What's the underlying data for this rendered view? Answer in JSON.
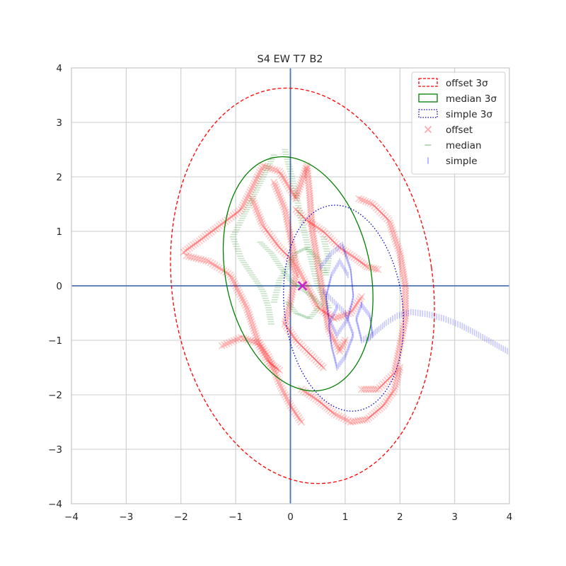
{
  "chart_data": {
    "type": "scatter",
    "title": "S4 EW T7 B2",
    "xlim": [
      -4,
      4
    ],
    "ylim": [
      -4,
      4
    ],
    "xticks": [
      -4,
      -3,
      -2,
      -1,
      0,
      1,
      2,
      3,
      4
    ],
    "yticks": [
      -4,
      -3,
      -2,
      -1,
      0,
      1,
      2,
      3,
      4
    ],
    "grid": true,
    "legend_position": "top-right",
    "axis_lines": {
      "x": 0,
      "y": 0,
      "color": "#4c72b0"
    },
    "ellipses": [
      {
        "name": "offset 3σ",
        "cx": 0.22,
        "cy": 0.0,
        "rx": 2.38,
        "ry": 3.65,
        "angle_deg": -8,
        "color": "#ff0000",
        "style": "dashed"
      },
      {
        "name": "median 3σ",
        "cx": 0.14,
        "cy": 0.22,
        "rx": 1.32,
        "ry": 2.18,
        "angle_deg": -12,
        "color": "#008000",
        "style": "solid"
      },
      {
        "name": "simple 3σ",
        "cx": 0.97,
        "cy": -0.41,
        "rx": 1.08,
        "ry": 1.9,
        "angle_deg": -7,
        "color": "#0000cc",
        "style": "dotted"
      }
    ],
    "series": [
      {
        "name": "offset",
        "marker": "x",
        "color": "#ff0000",
        "paths": [
          [
            [
              -1.95,
              0.62
            ],
            [
              -1.7,
              0.8
            ],
            [
              -1.3,
              1.1
            ],
            [
              -0.9,
              1.4
            ],
            [
              -0.5,
              2.2
            ],
            [
              -0.2,
              2.1
            ],
            [
              0.1,
              1.6
            ],
            [
              0.3,
              2.2
            ],
            [
              0.35,
              1.7
            ],
            [
              0.4,
              1.0
            ],
            [
              0.5,
              0.4
            ],
            [
              0.6,
              -0.2
            ],
            [
              0.7,
              -0.8
            ],
            [
              0.9,
              -1.2
            ],
            [
              1.0,
              -1.0
            ]
          ],
          [
            [
              -1.9,
              0.55
            ],
            [
              -1.5,
              0.45
            ],
            [
              -1.1,
              0.2
            ],
            [
              -0.8,
              -0.4
            ],
            [
              -0.6,
              -1.0
            ],
            [
              -0.4,
              -1.3
            ],
            [
              -0.2,
              -1.8
            ],
            [
              0.0,
              -2.2
            ],
            [
              0.2,
              -2.5
            ]
          ],
          [
            [
              -1.25,
              -1.1
            ],
            [
              -0.9,
              -0.95
            ],
            [
              -0.6,
              -1.05
            ],
            [
              -0.4,
              -1.4
            ],
            [
              -0.2,
              -1.55
            ]
          ],
          [
            [
              0.2,
              -1.9
            ],
            [
              0.5,
              -2.1
            ],
            [
              0.8,
              -2.35
            ],
            [
              1.1,
              -2.5
            ],
            [
              1.4,
              -2.45
            ],
            [
              1.7,
              -2.2
            ],
            [
              1.9,
              -1.9
            ],
            [
              2.0,
              -1.5
            ]
          ],
          [
            [
              1.25,
              1.6
            ],
            [
              1.5,
              1.5
            ],
            [
              1.8,
              1.2
            ],
            [
              2.0,
              0.6
            ],
            [
              2.1,
              0.0
            ],
            [
              2.1,
              -0.6
            ],
            [
              2.0,
              -1.1
            ],
            [
              1.9,
              -1.6
            ],
            [
              1.6,
              -1.9
            ],
            [
              1.3,
              -1.9
            ]
          ],
          [
            [
              0.1,
              1.4
            ],
            [
              0.3,
              1.2
            ],
            [
              0.6,
              1.0
            ],
            [
              0.9,
              0.7
            ],
            [
              1.2,
              0.5
            ],
            [
              1.4,
              0.35
            ],
            [
              1.6,
              0.3
            ]
          ],
          [
            [
              -0.3,
              1.9
            ],
            [
              -0.1,
              1.4
            ],
            [
              0.0,
              0.9
            ],
            [
              0.1,
              0.4
            ],
            [
              0.3,
              0.0
            ],
            [
              0.5,
              -0.4
            ],
            [
              0.8,
              -0.6
            ],
            [
              1.1,
              -0.5
            ],
            [
              1.3,
              -0.2
            ]
          ],
          [
            [
              -0.7,
              1.6
            ],
            [
              -0.5,
              1.1
            ],
            [
              -0.2,
              0.7
            ],
            [
              0.0,
              0.5
            ],
            [
              0.1,
              0.2
            ],
            [
              0.0,
              -0.3
            ],
            [
              -0.1,
              -0.7
            ],
            [
              0.1,
              -1.0
            ],
            [
              0.3,
              -1.2
            ],
            [
              0.6,
              -1.5
            ]
          ]
        ]
      },
      {
        "name": "median",
        "marker": "_",
        "color": "#008000",
        "paths": [
          [
            [
              -0.3,
              2.4
            ],
            [
              -0.5,
              2.0
            ],
            [
              -0.7,
              1.6
            ],
            [
              -0.9,
              1.2
            ],
            [
              -1.05,
              0.9
            ],
            [
              -0.9,
              0.5
            ],
            [
              -0.7,
              0.2
            ],
            [
              -0.5,
              -0.1
            ],
            [
              -0.4,
              -0.4
            ],
            [
              -0.35,
              -0.7
            ]
          ],
          [
            [
              -0.1,
              2.5
            ],
            [
              0.0,
              2.1
            ],
            [
              0.1,
              1.7
            ],
            [
              0.2,
              1.2
            ],
            [
              0.3,
              0.8
            ],
            [
              0.4,
              0.4
            ],
            [
              0.5,
              0.0
            ],
            [
              0.6,
              -0.2
            ],
            [
              0.7,
              -0.4
            ]
          ],
          [
            [
              -0.55,
              0.8
            ],
            [
              -0.35,
              0.6
            ],
            [
              -0.15,
              0.3
            ],
            [
              0.0,
              0.1
            ],
            [
              0.2,
              -0.05
            ],
            [
              0.4,
              -0.2
            ],
            [
              0.55,
              -0.35
            ],
            [
              0.35,
              -0.6
            ],
            [
              0.1,
              -0.5
            ],
            [
              -0.05,
              -0.3
            ]
          ],
          [
            [
              0.6,
              0.9
            ],
            [
              0.7,
              0.5
            ],
            [
              0.65,
              0.2
            ],
            [
              0.5,
              0.5
            ],
            [
              0.3,
              0.7
            ],
            [
              0.1,
              0.6
            ],
            [
              -0.05,
              0.35
            ],
            [
              -0.2,
              0.1
            ],
            [
              -0.3,
              -0.3
            ]
          ]
        ]
      },
      {
        "name": "simple",
        "marker": "|",
        "color": "#0000ff",
        "paths": [
          [
            [
              0.55,
              0.35
            ],
            [
              0.75,
              0.6
            ],
            [
              0.95,
              0.75
            ],
            [
              1.1,
              0.3
            ],
            [
              1.15,
              -0.2
            ],
            [
              1.05,
              -0.6
            ],
            [
              0.85,
              -0.9
            ],
            [
              0.7,
              -0.6
            ],
            [
              0.65,
              -0.2
            ],
            [
              0.75,
              0.2
            ],
            [
              0.9,
              0.45
            ],
            [
              1.05,
              0.2
            ]
          ],
          [
            [
              0.6,
              -0.1
            ],
            [
              0.8,
              -0.3
            ],
            [
              1.0,
              -0.5
            ],
            [
              1.15,
              -0.9
            ],
            [
              1.0,
              -1.3
            ],
            [
              0.85,
              -1.5
            ],
            [
              0.75,
              -1.1
            ],
            [
              0.7,
              -0.7
            ],
            [
              0.85,
              -0.4
            ]
          ],
          [
            [
              1.3,
              -0.35
            ],
            [
              1.45,
              -0.55
            ],
            [
              1.5,
              -0.9
            ],
            [
              1.3,
              -1.0
            ],
            [
              1.2,
              -0.6
            ],
            [
              1.3,
              -0.35
            ]
          ],
          [
            [
              1.4,
              -1.0
            ],
            [
              1.55,
              -0.85
            ],
            [
              1.75,
              -0.68
            ],
            [
              1.95,
              -0.55
            ],
            [
              2.2,
              -0.48
            ],
            [
              2.5,
              -0.52
            ],
            [
              2.8,
              -0.6
            ],
            [
              3.1,
              -0.72
            ],
            [
              3.4,
              -0.88
            ],
            [
              3.7,
              -1.05
            ],
            [
              4.0,
              -1.22
            ]
          ]
        ]
      }
    ],
    "center_marker": {
      "x": 0.22,
      "y": 0.0,
      "color": "#cc22cc",
      "marker": "x"
    },
    "legend_entries": [
      {
        "label": "offset 3σ",
        "kind": "line",
        "color": "#ff0000",
        "style": "dashed"
      },
      {
        "label": "median 3σ",
        "kind": "line",
        "color": "#008000",
        "style": "solid"
      },
      {
        "label": "simple 3σ",
        "kind": "line",
        "color": "#0000cc",
        "style": "dotted"
      },
      {
        "label": "offset",
        "kind": "marker",
        "color": "#ff0000",
        "marker": "x"
      },
      {
        "label": "median",
        "kind": "marker",
        "color": "#008000",
        "marker": "_"
      },
      {
        "label": "simple",
        "kind": "marker",
        "color": "#0000ff",
        "marker": "|"
      }
    ]
  }
}
